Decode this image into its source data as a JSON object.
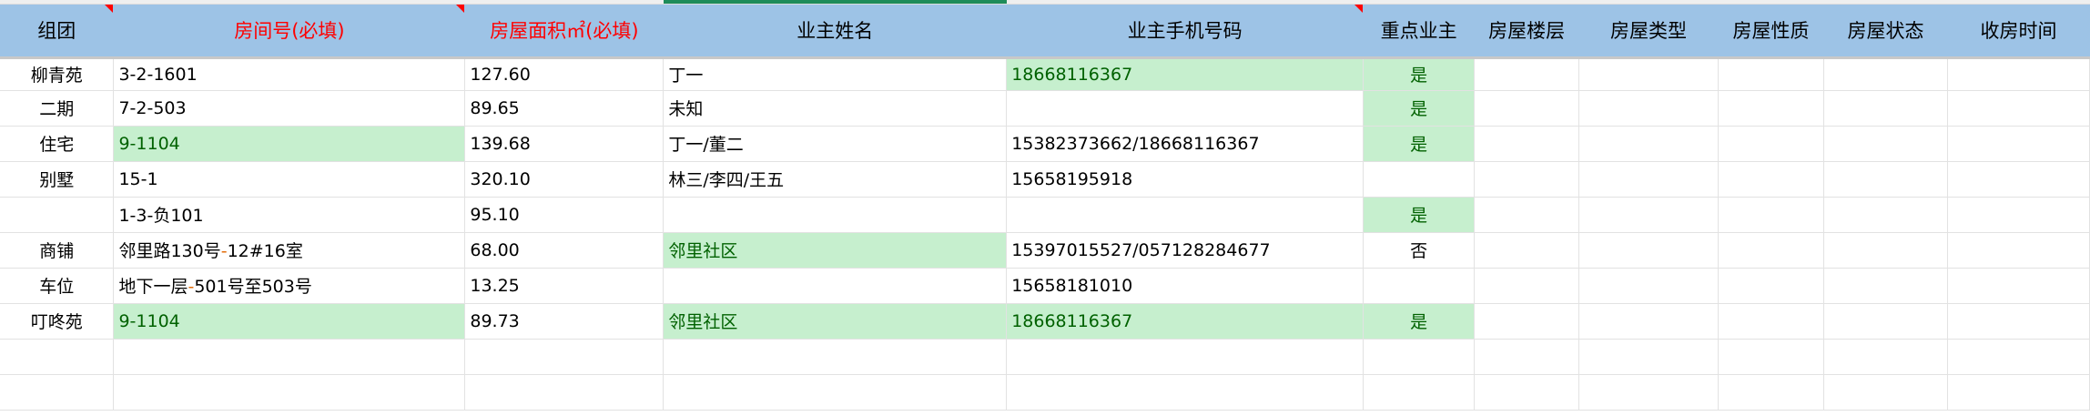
{
  "colors": {
    "header_bg": "#9dc3e6",
    "good_fill": "#c6efce",
    "good_text": "#006100",
    "required_header": "#ff0000",
    "comment_marker": "#ff0000"
  },
  "headers": [
    "组团",
    "房间号(必填)",
    "房屋面积㎡(必填)",
    "业主姓名",
    "业主手机号码",
    "重点业主",
    "房屋楼层",
    "房屋类型",
    "房屋性质",
    "房屋状态",
    "收房时间"
  ],
  "rows": [
    {
      "group": "柳青苑",
      "room": "3-2-1601",
      "area": "127.60",
      "owner": "丁一",
      "phone": "18668116367",
      "key": "是"
    },
    {
      "group": "二期",
      "room": "7-2-503",
      "area": "89.65",
      "owner": "未知",
      "phone": "",
      "key": "是"
    },
    {
      "group": "住宅",
      "room": "9-1104",
      "area": "139.68",
      "owner": "丁一/董二",
      "phone": "15382373662/18668116367",
      "key": "是"
    },
    {
      "group": "别墅",
      "room": "15-1",
      "area": "320.10",
      "owner": "林三/李四/王五",
      "phone": "15658195918",
      "key": ""
    },
    {
      "group": "",
      "room": "1-3-负101",
      "area": "95.10",
      "owner": "",
      "phone": "",
      "key": "是"
    },
    {
      "group": "商铺",
      "room_a": "邻里路130号",
      "room_dash": "-",
      "room_b": "12#16室",
      "area": "68.00",
      "owner": "邻里社区",
      "phone": "15397015527/057128284677",
      "key": "否"
    },
    {
      "group": "车位",
      "room_a": "地下一层",
      "room_dash": "-",
      "room_b": "501号至503号",
      "area": "13.25",
      "owner": "",
      "phone": "15658181010",
      "key": ""
    },
    {
      "group": "叮咚苑",
      "room": "9-1104",
      "area": "89.73",
      "owner": "邻里社区",
      "phone": "18668116367",
      "key": "是"
    }
  ]
}
